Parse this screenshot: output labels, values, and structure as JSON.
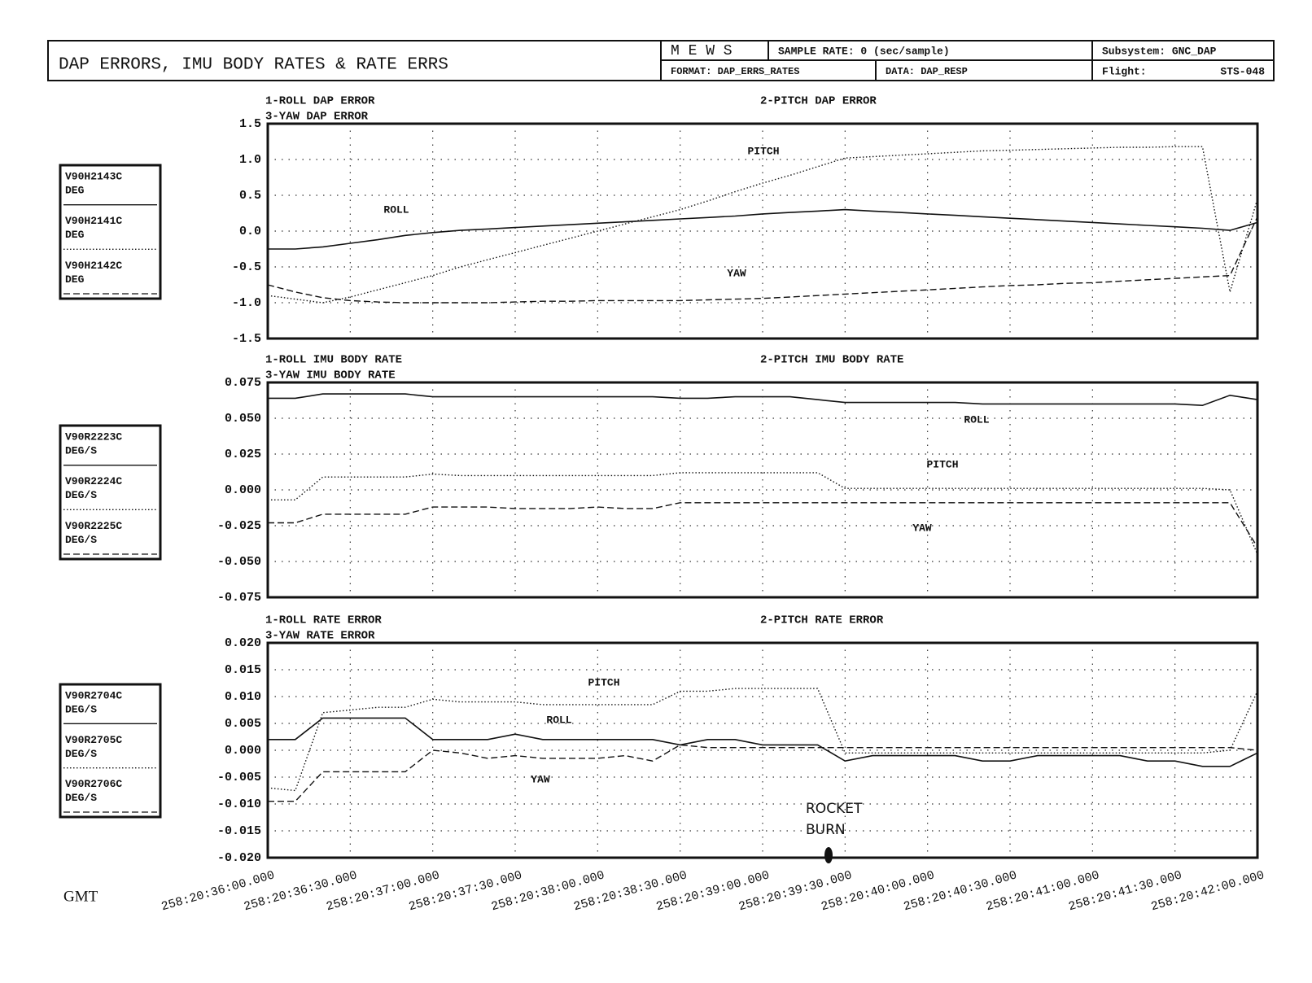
{
  "header": {
    "title": "DAP ERRORS, IMU BODY RATES & RATE ERRS",
    "mews": "M E W S",
    "sample_rate": "SAMPLE RATE: 0 (sec/sample)",
    "format": "FORMAT: DAP_ERRS_RATES",
    "data": "DATA: DAP_RESP",
    "subsystem": "Subsystem: GNC_DAP",
    "flight_label": "Flight:",
    "flight": "STS-048"
  },
  "x_axis_label": "GMT",
  "annotation": [
    "ROCKET",
    "BURN"
  ],
  "chart_data": [
    {
      "type": "line",
      "title_left": [
        "1-ROLL DAP ERROR",
        "3-YAW DAP ERROR"
      ],
      "title_right": "2-PITCH DAP ERROR",
      "x": [
        "258:20:36:00.000",
        "258:20:36:10.000",
        "258:20:36:20.000",
        "258:20:36:30.000",
        "258:20:36:40.000",
        "258:20:36:50.000",
        "258:20:37:00.000",
        "258:20:37:10.000",
        "258:20:37:20.000",
        "258:20:37:30.000",
        "258:20:37:40.000",
        "258:20:37:50.000",
        "258:20:38:00.000",
        "258:20:38:10.000",
        "258:20:38:20.000",
        "258:20:38:30.000",
        "258:20:38:40.000",
        "258:20:38:50.000",
        "258:20:39:00.000",
        "258:20:39:10.000",
        "258:20:39:20.000",
        "258:20:39:30.000",
        "258:20:39:40.000",
        "258:20:39:50.000",
        "258:20:40:00.000",
        "258:20:40:10.000",
        "258:20:40:20.000",
        "258:20:40:30.000",
        "258:20:40:40.000",
        "258:20:40:50.000",
        "258:20:41:00.000",
        "258:20:41:10.000",
        "258:20:41:20.000",
        "258:20:41:30.000",
        "258:20:41:40.000",
        "258:20:41:50.000",
        "258:20:42:00.000"
      ],
      "ylim": [
        -1.5,
        1.5
      ],
      "yticks": [
        -1.5,
        {
          "value": -1,
          "label": "-1.0"
        },
        -0.5,
        {
          "value": 0,
          "label": "0.0"
        },
        0.5,
        {
          "value": 1,
          "label": "1.0"
        },
        1.5
      ],
      "grid": true,
      "series": [
        {
          "name": "V90H2143C",
          "unit": "DEG",
          "label": "ROLL",
          "color": "#111111",
          "dash": "solid",
          "values": [
            -0.25,
            -0.25,
            -0.22,
            -0.17,
            -0.12,
            -0.06,
            -0.02,
            0.01,
            0.03,
            0.05,
            0.07,
            0.09,
            0.11,
            0.13,
            0.15,
            0.17,
            0.19,
            0.21,
            0.24,
            0.26,
            0.28,
            0.3,
            0.28,
            0.26,
            0.24,
            0.22,
            0.2,
            0.18,
            0.16,
            0.14,
            0.12,
            0.1,
            0.08,
            0.06,
            0.04,
            0.01,
            0.12
          ]
        },
        {
          "name": "V90H2141C",
          "unit": "DEG",
          "label": "PITCH",
          "color": "#111111",
          "dash": "dotted",
          "values": [
            -0.9,
            -0.95,
            -1.0,
            -0.92,
            -0.82,
            -0.72,
            -0.62,
            -0.5,
            -0.4,
            -0.3,
            -0.2,
            -0.1,
            0.0,
            0.1,
            0.2,
            0.3,
            0.42,
            0.55,
            0.67,
            0.78,
            0.9,
            1.02,
            1.04,
            1.06,
            1.08,
            1.1,
            1.12,
            1.13,
            1.14,
            1.15,
            1.16,
            1.17,
            1.17,
            1.18,
            1.18,
            -0.85,
            0.45
          ]
        },
        {
          "name": "V90H2142C",
          "unit": "DEG",
          "label": "YAW",
          "color": "#111111",
          "dash": "dashed",
          "values": [
            -0.75,
            -0.85,
            -0.93,
            -0.97,
            -0.99,
            -1.0,
            -1.0,
            -1.0,
            -1.0,
            -0.99,
            -0.98,
            -0.98,
            -0.97,
            -0.97,
            -0.97,
            -0.97,
            -0.96,
            -0.95,
            -0.94,
            -0.92,
            -0.9,
            -0.88,
            -0.86,
            -0.84,
            -0.82,
            -0.8,
            -0.78,
            -0.76,
            -0.75,
            -0.73,
            -0.72,
            -0.7,
            -0.68,
            -0.66,
            -0.64,
            -0.62,
            0.2
          ]
        }
      ]
    },
    {
      "type": "line",
      "title_left": [
        "1-ROLL IMU BODY RATE",
        "3-YAW IMU BODY RATE"
      ],
      "title_right": "2-PITCH IMU BODY RATE",
      "x": [
        "258:20:36:00.000",
        "258:20:36:10.000",
        "258:20:36:20.000",
        "258:20:36:30.000",
        "258:20:36:40.000",
        "258:20:36:50.000",
        "258:20:37:00.000",
        "258:20:37:10.000",
        "258:20:37:20.000",
        "258:20:37:30.000",
        "258:20:37:40.000",
        "258:20:37:50.000",
        "258:20:38:00.000",
        "258:20:38:10.000",
        "258:20:38:20.000",
        "258:20:38:30.000",
        "258:20:38:40.000",
        "258:20:38:50.000",
        "258:20:39:00.000",
        "258:20:39:10.000",
        "258:20:39:20.000",
        "258:20:39:30.000",
        "258:20:39:40.000",
        "258:20:39:50.000",
        "258:20:40:00.000",
        "258:20:40:10.000",
        "258:20:40:20.000",
        "258:20:40:30.000",
        "258:20:40:40.000",
        "258:20:40:50.000",
        "258:20:41:00.000",
        "258:20:41:10.000",
        "258:20:41:20.000",
        "258:20:41:30.000",
        "258:20:41:40.000",
        "258:20:41:50.000",
        "258:20:42:00.000"
      ],
      "ylim": [
        -0.075,
        0.075
      ],
      "yticks": [
        -0.075,
        {
          "value": -0.05,
          "label": "-0.050"
        },
        -0.025,
        {
          "value": 0,
          "label": "0.000"
        },
        0.025,
        {
          "value": 0.05,
          "label": "0.050"
        },
        0.075
      ],
      "grid": true,
      "series": [
        {
          "name": "V90R2223C",
          "unit": "DEG/S",
          "label": "ROLL",
          "color": "#111111",
          "dash": "solid",
          "values": [
            0.064,
            0.064,
            0.067,
            0.067,
            0.067,
            0.067,
            0.065,
            0.065,
            0.065,
            0.065,
            0.065,
            0.065,
            0.065,
            0.065,
            0.065,
            0.064,
            0.064,
            0.065,
            0.065,
            0.065,
            0.063,
            0.061,
            0.061,
            0.061,
            0.061,
            0.061,
            0.06,
            0.06,
            0.06,
            0.06,
            0.06,
            0.06,
            0.06,
            0.06,
            0.059,
            0.066,
            0.063
          ]
        },
        {
          "name": "V90R2224C",
          "unit": "DEG/S",
          "label": "PITCH",
          "color": "#111111",
          "dash": "dotted",
          "values": [
            -0.007,
            -0.007,
            0.009,
            0.009,
            0.009,
            0.009,
            0.011,
            0.01,
            0.01,
            0.01,
            0.01,
            0.01,
            0.01,
            0.01,
            0.01,
            0.012,
            0.012,
            0.012,
            0.012,
            0.012,
            0.012,
            0.001,
            0.001,
            0.001,
            0.001,
            0.001,
            0.001,
            0.001,
            0.001,
            0.001,
            0.001,
            0.001,
            0.001,
            0.001,
            0.001,
            0.0,
            -0.045
          ]
        },
        {
          "name": "V90R2225C",
          "unit": "DEG/S",
          "label": "YAW",
          "color": "#111111",
          "dash": "dashed",
          "values": [
            -0.023,
            -0.023,
            -0.017,
            -0.017,
            -0.017,
            -0.017,
            -0.012,
            -0.012,
            -0.012,
            -0.013,
            -0.013,
            -0.013,
            -0.012,
            -0.013,
            -0.013,
            -0.009,
            -0.009,
            -0.009,
            -0.009,
            -0.009,
            -0.009,
            -0.009,
            -0.009,
            -0.009,
            -0.009,
            -0.009,
            -0.009,
            -0.009,
            -0.009,
            -0.009,
            -0.009,
            -0.009,
            -0.009,
            -0.009,
            -0.009,
            -0.009,
            -0.04
          ]
        }
      ]
    },
    {
      "type": "line",
      "title_left": [
        "1-ROLL RATE ERROR",
        "3-YAW RATE ERROR"
      ],
      "title_right": "2-PITCH RATE ERROR",
      "x": [
        "258:20:36:00.000",
        "258:20:36:10.000",
        "258:20:36:20.000",
        "258:20:36:30.000",
        "258:20:36:40.000",
        "258:20:36:50.000",
        "258:20:37:00.000",
        "258:20:37:10.000",
        "258:20:37:20.000",
        "258:20:37:30.000",
        "258:20:37:40.000",
        "258:20:37:50.000",
        "258:20:38:00.000",
        "258:20:38:10.000",
        "258:20:38:20.000",
        "258:20:38:30.000",
        "258:20:38:40.000",
        "258:20:38:50.000",
        "258:20:39:00.000",
        "258:20:39:10.000",
        "258:20:39:20.000",
        "258:20:39:30.000",
        "258:20:39:40.000",
        "258:20:39:50.000",
        "258:20:40:00.000",
        "258:20:40:10.000",
        "258:20:40:20.000",
        "258:20:40:30.000",
        "258:20:40:40.000",
        "258:20:40:50.000",
        "258:20:41:00.000",
        "258:20:41:10.000",
        "258:20:41:20.000",
        "258:20:41:30.000",
        "258:20:41:40.000",
        "258:20:41:50.000",
        "258:20:42:00.000"
      ],
      "xlim": [
        "258:20:36:00.000",
        "258:20:42:00.000"
      ],
      "xticks": [
        "258:20:36:00.000",
        "258:20:36:30.000",
        "258:20:37:00.000",
        "258:20:37:30.000",
        "258:20:38:00.000",
        "258:20:38:30.000",
        "258:20:39:00.000",
        "258:20:39:30.000",
        "258:20:40:00.000",
        "258:20:40:30.000",
        "258:20:41:00.000",
        "258:20:41:30.000",
        "258:20:42:00.000"
      ],
      "ylim": [
        -0.02,
        0.02
      ],
      "yticks": [
        {
          "value": -0.02,
          "label": "-0.020"
        },
        -0.015,
        {
          "value": -0.01,
          "label": "-0.010"
        },
        -0.005,
        {
          "value": 0,
          "label": "0.000"
        },
        0.005,
        {
          "value": 0.01,
          "label": "0.010"
        },
        0.015,
        {
          "value": 0.02,
          "label": "0.020"
        }
      ],
      "grid": true,
      "series": [
        {
          "name": "V90R2704C",
          "unit": "DEG/S",
          "label": "ROLL",
          "color": "#111111",
          "dash": "solid",
          "values": [
            0.002,
            0.002,
            0.006,
            0.006,
            0.006,
            0.006,
            0.002,
            0.002,
            0.002,
            0.003,
            0.002,
            0.002,
            0.002,
            0.002,
            0.002,
            0.001,
            0.002,
            0.002,
            0.001,
            0.001,
            0.001,
            -0.002,
            -0.001,
            -0.001,
            -0.001,
            -0.001,
            -0.002,
            -0.002,
            -0.001,
            -0.001,
            -0.001,
            -0.001,
            -0.002,
            -0.002,
            -0.003,
            -0.003,
            -0.0005
          ]
        },
        {
          "name": "V90R2705C",
          "unit": "DEG/S",
          "label": "PITCH",
          "color": "#111111",
          "dash": "dotted",
          "values": [
            -0.007,
            -0.0075,
            0.007,
            0.0075,
            0.008,
            0.008,
            0.0095,
            0.009,
            0.009,
            0.009,
            0.0085,
            0.0085,
            0.0085,
            0.0085,
            0.0085,
            0.011,
            0.011,
            0.0115,
            0.0115,
            0.0115,
            0.0115,
            -0.0005,
            -0.0005,
            -0.0005,
            -0.0005,
            -0.0005,
            -0.0005,
            -0.0005,
            -0.0005,
            -0.0005,
            -0.0005,
            -0.0005,
            -0.0005,
            -0.0005,
            -0.0005,
            0.0,
            0.011
          ]
        },
        {
          "name": "V90R2706C",
          "unit": "DEG/S",
          "label": "YAW",
          "color": "#111111",
          "dash": "dashed",
          "values": [
            -0.0095,
            -0.0095,
            -0.004,
            -0.004,
            -0.004,
            -0.004,
            0.0,
            -0.0005,
            -0.0015,
            -0.001,
            -0.0015,
            -0.0015,
            -0.0015,
            -0.001,
            -0.002,
            0.001,
            0.0005,
            0.0005,
            0.0005,
            0.0005,
            0.0005,
            0.0005,
            0.0005,
            0.0005,
            0.0005,
            0.0005,
            0.0005,
            0.0005,
            0.0005,
            0.0005,
            0.0005,
            0.0005,
            0.0005,
            0.0005,
            0.0005,
            0.0005,
            0.0
          ]
        }
      ]
    }
  ]
}
